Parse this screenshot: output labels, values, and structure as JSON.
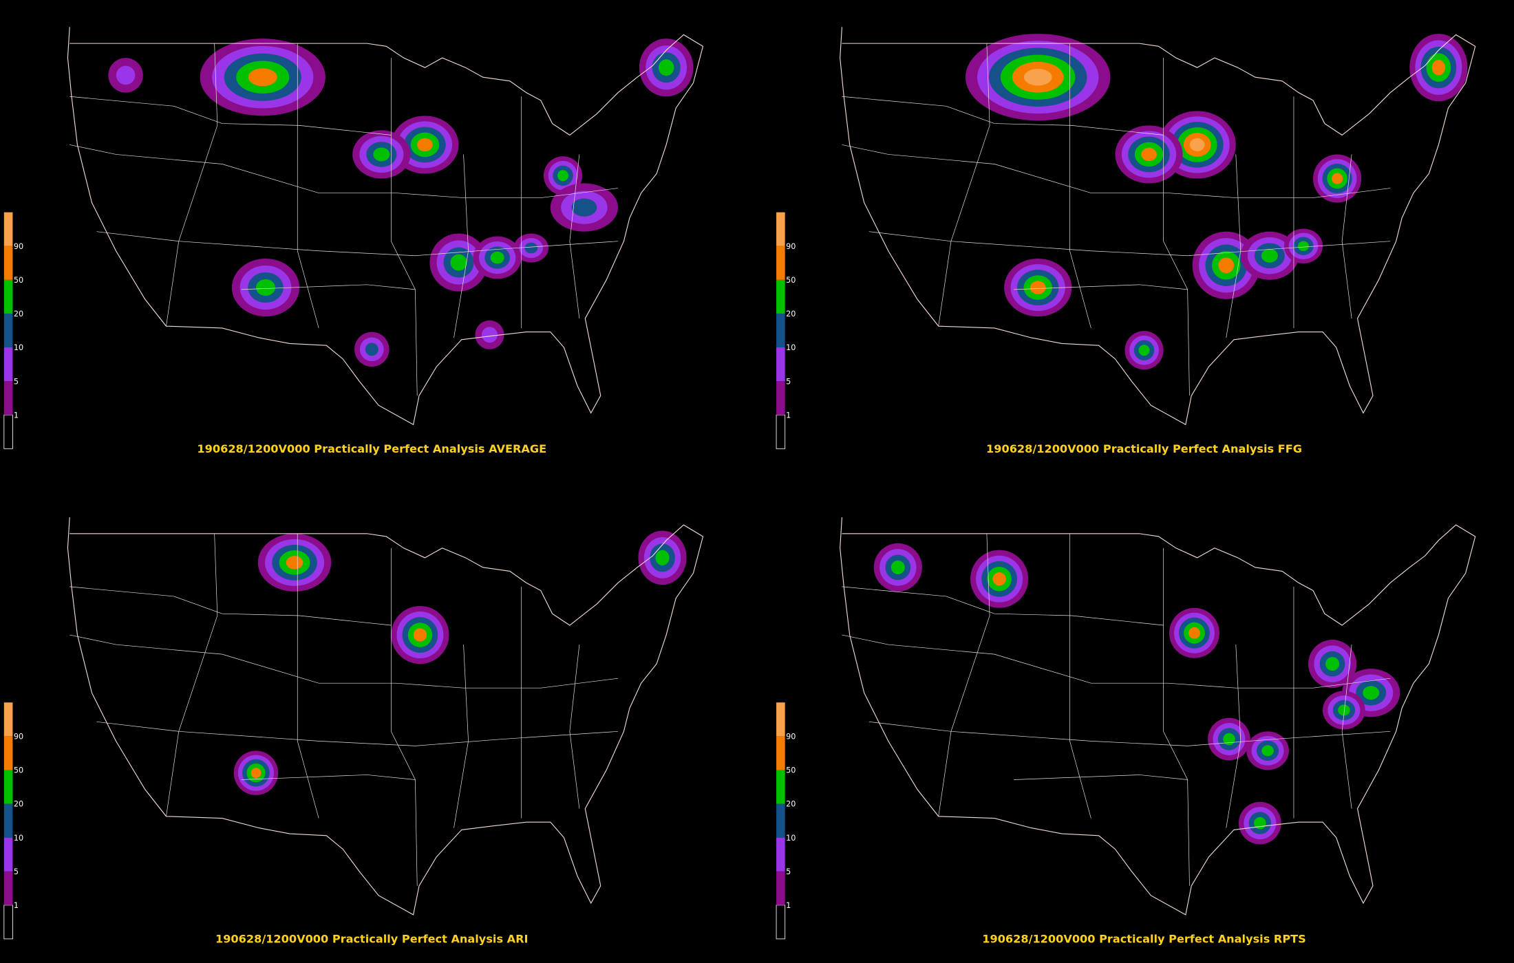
{
  "panels": [
    {
      "title": "190628/1200V000 Practically Perfect Analysis AVERAGE"
    },
    {
      "title": "190628/1200V000 Practically Perfect Analysis FFG"
    },
    {
      "title": "190628/1200V000 Practically Perfect Analysis ARI"
    },
    {
      "title": "190628/1200V000 Practically Perfect Analysis RPTS"
    }
  ],
  "legend": {
    "levels": [
      1,
      5,
      10,
      20,
      50,
      90
    ]
  }
}
